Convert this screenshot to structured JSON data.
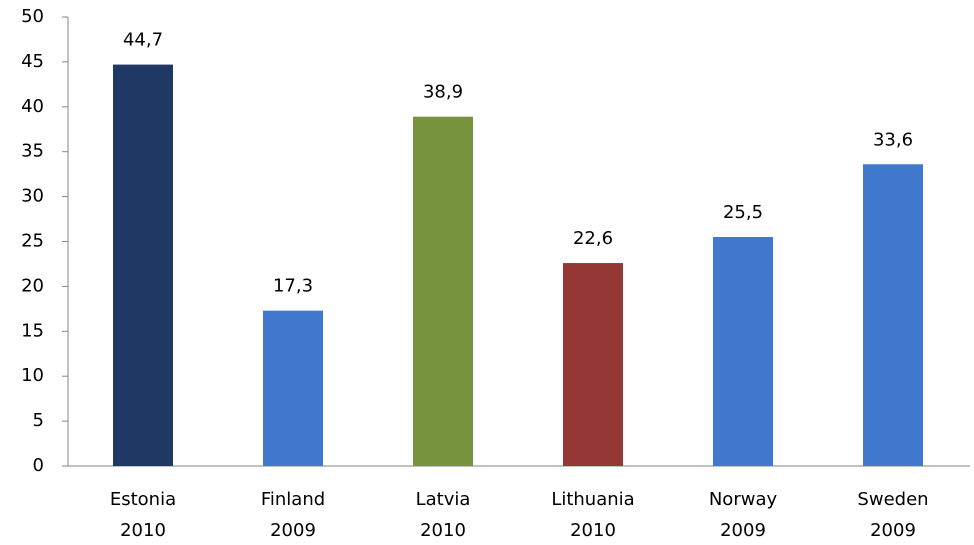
{
  "chart_data": {
    "type": "bar",
    "categories": [
      [
        "Estonia",
        "2010"
      ],
      [
        "Finland",
        "2009"
      ],
      [
        "Latvia",
        "2010"
      ],
      [
        "Lithuania",
        "2010"
      ],
      [
        "Norway",
        "2009"
      ],
      [
        "Sweden",
        "2009"
      ]
    ],
    "values": [
      44.7,
      17.3,
      38.9,
      22.6,
      25.5,
      33.6
    ],
    "value_labels": [
      "44,7",
      "17,3",
      "38,9",
      "22,6",
      "25,5",
      "33,6"
    ],
    "colors": [
      "#1f3864",
      "#3f78cc",
      "#77933c",
      "#953735",
      "#3f78cc",
      "#3f78cc"
    ],
    "ylim": [
      0,
      50
    ],
    "yticks": [
      0,
      5,
      10,
      15,
      20,
      25,
      30,
      35,
      40,
      45,
      50
    ],
    "grid": false
  }
}
